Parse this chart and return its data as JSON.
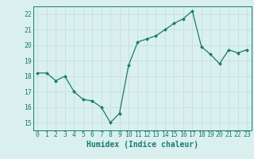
{
  "x": [
    0,
    1,
    2,
    3,
    4,
    5,
    6,
    7,
    8,
    9,
    10,
    11,
    12,
    13,
    14,
    15,
    16,
    17,
    18,
    19,
    20,
    21,
    22,
    23
  ],
  "y": [
    18.2,
    18.2,
    17.7,
    18.0,
    17.0,
    16.5,
    16.4,
    16.0,
    15.0,
    15.6,
    18.7,
    20.2,
    20.4,
    20.6,
    21.0,
    21.4,
    21.7,
    22.2,
    19.9,
    19.4,
    18.8,
    19.7,
    19.5,
    19.7
  ],
  "xlim": [
    -0.5,
    23.5
  ],
  "ylim": [
    14.5,
    22.5
  ],
  "yticks": [
    15,
    16,
    17,
    18,
    19,
    20,
    21,
    22
  ],
  "xticks": [
    0,
    1,
    2,
    3,
    4,
    5,
    6,
    7,
    8,
    9,
    10,
    11,
    12,
    13,
    14,
    15,
    16,
    17,
    18,
    19,
    20,
    21,
    22,
    23
  ],
  "xlabel": "Humidex (Indice chaleur)",
  "line_color": "#1a7a6e",
  "marker": "D",
  "marker_size": 2.0,
  "bg_color": "#d9f0ef",
  "grid_color": "#c4e0dd",
  "tick_label_fontsize": 5.8,
  "xlabel_fontsize": 7.0
}
